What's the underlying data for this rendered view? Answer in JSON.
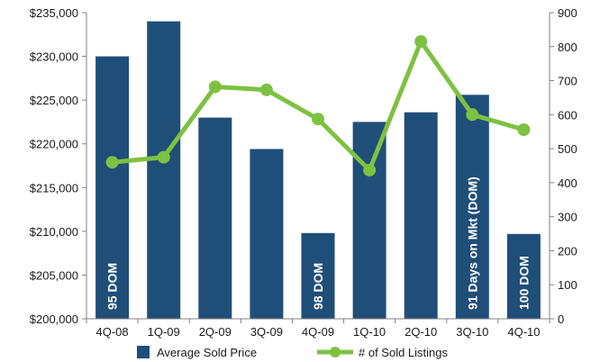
{
  "chart_data": {
    "type": "bar",
    "categories": [
      "4Q-08",
      "1Q-09",
      "2Q-09",
      "3Q-09",
      "4Q-09",
      "1Q-10",
      "2Q-10",
      "3Q-10",
      "4Q-10"
    ],
    "series": [
      {
        "name": "Average Sold Price",
        "type": "bar",
        "axis": "left",
        "color": "#1f4e79",
        "values": [
          230000,
          234000,
          223000,
          219400,
          209800,
          222500,
          223600,
          225600,
          209700
        ]
      },
      {
        "name": "# of Sold Listings",
        "type": "line",
        "axis": "right",
        "color": "#7dc142",
        "values": [
          460,
          475,
          682,
          673,
          587,
          437,
          815,
          600,
          556
        ]
      }
    ],
    "bar_labels": [
      "95 DOM",
      "",
      "",
      "",
      "98 DOM",
      "",
      "",
      "91 Days on Mkt (DOM)",
      "100 DOM"
    ],
    "y_left": {
      "min": 200000,
      "max": 235000,
      "ticks": [
        {
          "value": 200000,
          "label": "$200,000"
        },
        {
          "value": 205000,
          "label": "$205,000"
        },
        {
          "value": 210000,
          "label": "$210,000"
        },
        {
          "value": 215000,
          "label": "$215,000"
        },
        {
          "value": 220000,
          "label": "$220,000"
        },
        {
          "value": 225000,
          "label": "$225,000"
        },
        {
          "value": 230000,
          "label": "$230,000"
        },
        {
          "value": 235000,
          "label": "$235,000"
        }
      ]
    },
    "y_right": {
      "min": 0,
      "max": 900,
      "ticks": [
        {
          "value": 0,
          "label": "0"
        },
        {
          "value": 100,
          "label": "100"
        },
        {
          "value": 200,
          "label": "200"
        },
        {
          "value": 300,
          "label": "300"
        },
        {
          "value": 400,
          "label": "400"
        },
        {
          "value": 500,
          "label": "500"
        },
        {
          "value": 600,
          "label": "600"
        },
        {
          "value": 700,
          "label": "700"
        },
        {
          "value": 800,
          "label": "800"
        },
        {
          "value": 900,
          "label": "900"
        }
      ]
    },
    "grid": false,
    "legend": "bottom"
  }
}
